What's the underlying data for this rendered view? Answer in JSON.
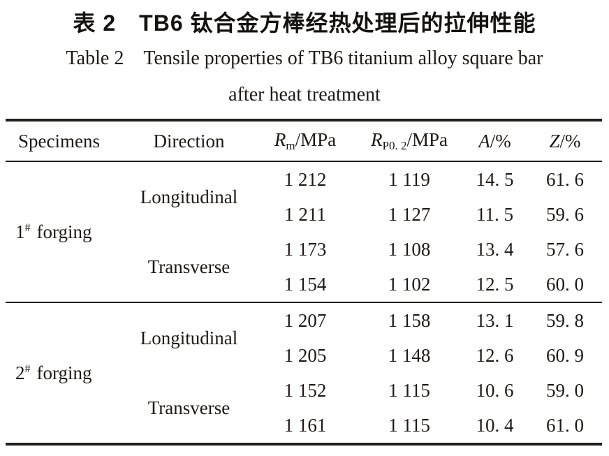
{
  "title": {
    "zh": "表 2　TB6 钛合金方棒经热处理后的拉伸性能",
    "en_line1": "Table 2 Tensile properties of TB6 titanium alloy square bar",
    "en_line2": "after heat treatment"
  },
  "table": {
    "headers": {
      "specimens": "Specimens",
      "direction": "Direction",
      "rm": {
        "sym": "R",
        "sub": "m",
        "unit": "/MPa"
      },
      "rp": {
        "sym": "R",
        "sub": "P0. 2",
        "unit": "/MPa"
      },
      "a": {
        "sym": "A",
        "unit": "/%"
      },
      "z": {
        "sym": "Z",
        "unit": "/%"
      }
    },
    "groups": [
      {
        "specimen": {
          "num": "1",
          "sup": "#",
          "name": "forging"
        },
        "directions": [
          {
            "label": "Longitudinal",
            "rows": [
              {
                "rm": "1 212",
                "rp": "1 119",
                "a": "14. 5",
                "z": "61. 6"
              },
              {
                "rm": "1 211",
                "rp": "1 127",
                "a": "11. 5",
                "z": "59. 6"
              }
            ]
          },
          {
            "label": "Transverse",
            "rows": [
              {
                "rm": "1 173",
                "rp": "1 108",
                "a": "13. 4",
                "z": "57. 6"
              },
              {
                "rm": "1 154",
                "rp": "1 102",
                "a": "12. 5",
                "z": "60. 0"
              }
            ]
          }
        ]
      },
      {
        "specimen": {
          "num": "2",
          "sup": "#",
          "name": "forging"
        },
        "directions": [
          {
            "label": "Longitudinal",
            "rows": [
              {
                "rm": "1 207",
                "rp": "1 158",
                "a": "13. 1",
                "z": "59. 8"
              },
              {
                "rm": "1 205",
                "rp": "1 148",
                "a": "12. 6",
                "z": "60. 9"
              }
            ]
          },
          {
            "label": "Transverse",
            "rows": [
              {
                "rm": "1 152",
                "rp": "1 115",
                "a": "10. 6",
                "z": "59. 0"
              },
              {
                "rm": "1 161",
                "rp": "1 115",
                "a": "10. 4",
                "z": "61. 0"
              }
            ]
          }
        ]
      }
    ]
  }
}
